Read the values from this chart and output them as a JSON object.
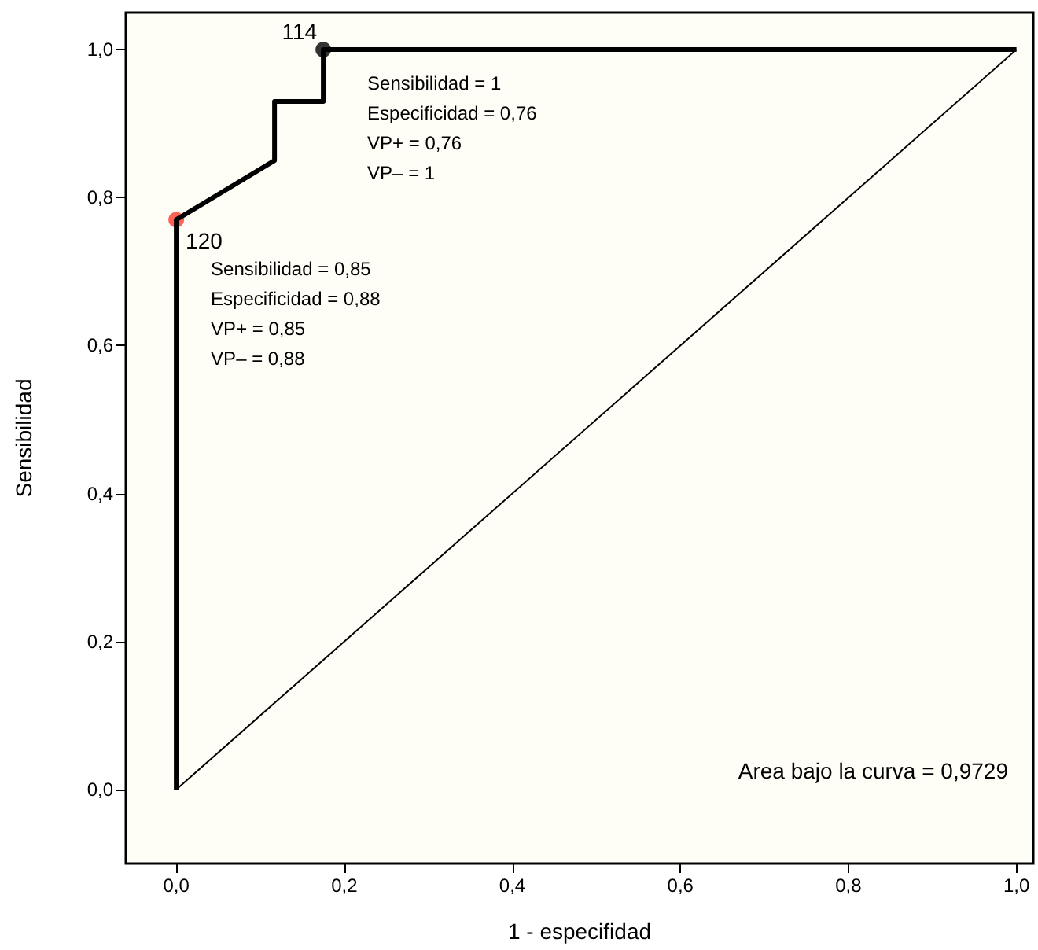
{
  "chart_data": {
    "type": "line",
    "xlabel": "1 - especifidad",
    "ylabel": "Sensibilidad",
    "xlim": [
      -0.06,
      1.02
    ],
    "ylim": [
      -0.1,
      1.05
    ],
    "xticks": [
      {
        "value": 0,
        "label": "0,0"
      },
      {
        "value": 0.2,
        "label": "0,2"
      },
      {
        "value": 0.4,
        "label": "0,4"
      },
      {
        "value": 0.6,
        "label": "0,6"
      },
      {
        "value": 0.8,
        "label": "0,8"
      },
      {
        "value": 1,
        "label": "1,0"
      }
    ],
    "yticks": [
      {
        "value": 0,
        "label": "0,0"
      },
      {
        "value": 0.2,
        "label": "0,2"
      },
      {
        "value": 0.4,
        "label": "0,4"
      },
      {
        "value": 0.6,
        "label": "0,6"
      },
      {
        "value": 0.8,
        "label": "0,8"
      },
      {
        "value": 1,
        "label": "1,0"
      }
    ],
    "grid": false,
    "series": [
      {
        "color": "#000000",
        "x": [
          0,
          0,
          0.117,
          0.117,
          0.175,
          0.175,
          1
        ],
        "values": [
          0,
          0.77,
          0.85,
          0.93,
          0.93,
          1,
          1
        ]
      },
      {
        "color": "#000000",
        "x": [
          0,
          1
        ],
        "values": [
          0,
          1
        ]
      },
      {
        "type": "scatter",
        "colors": [
          "#ff3b30",
          "#000000"
        ],
        "x": [
          0,
          0.175
        ],
        "values": [
          0.77,
          1
        ]
      }
    ],
    "annotations": [
      "120",
      {
        "text": "114",
        "x": 0.175,
        "y": 1
      },
      "Sensibilidad = 0,85\nEspecificidad = 0,88\nVP+ = 0,85\nVP– = 0,88",
      {
        "text": "Sensibilidad = 1\nEspecificidad = 0,76\nVP+ = 0,76\nVP– = 1",
        "x": 0.175,
        "y": 1
      },
      "Area bajo la curva = 0,9729"
    ]
  }
}
